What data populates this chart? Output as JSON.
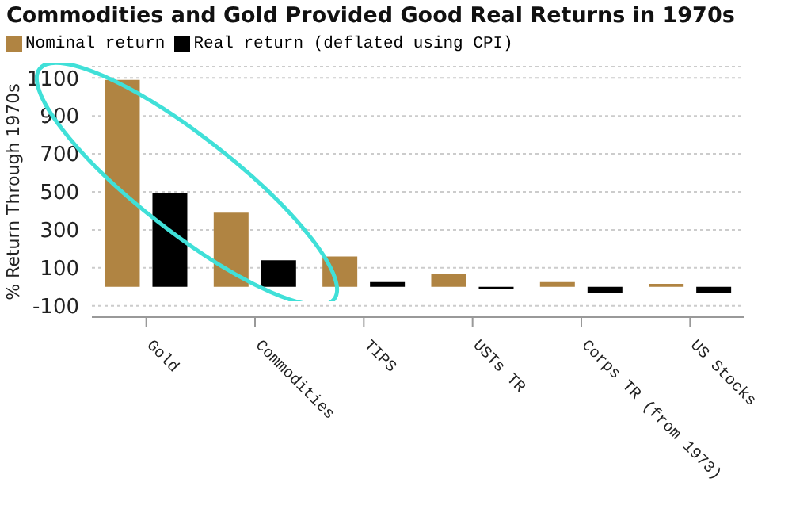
{
  "chart_data": {
    "type": "bar",
    "title": "Commodities and Gold Provided Good Real Returns in 1970s",
    "ylabel": "% Return Through 1970s",
    "categories": [
      "Gold",
      "Commodities",
      "TIPS",
      "USTs TR",
      "Corps TR (from 1973)",
      "US Stocks"
    ],
    "series": [
      {
        "name": "Nominal return",
        "color": "#b08442",
        "values": [
          1090,
          390,
          160,
          70,
          25,
          15
        ]
      },
      {
        "name": "Real return (deflated using CPI)",
        "color": "#000000",
        "values": [
          495,
          140,
          25,
          -10,
          -30,
          -35
        ]
      }
    ],
    "ylim": [
      -160,
      1160
    ],
    "yticks": [
      -100,
      100,
      300,
      500,
      700,
      900,
      1100
    ],
    "grid": "y",
    "legend": "top left"
  }
}
